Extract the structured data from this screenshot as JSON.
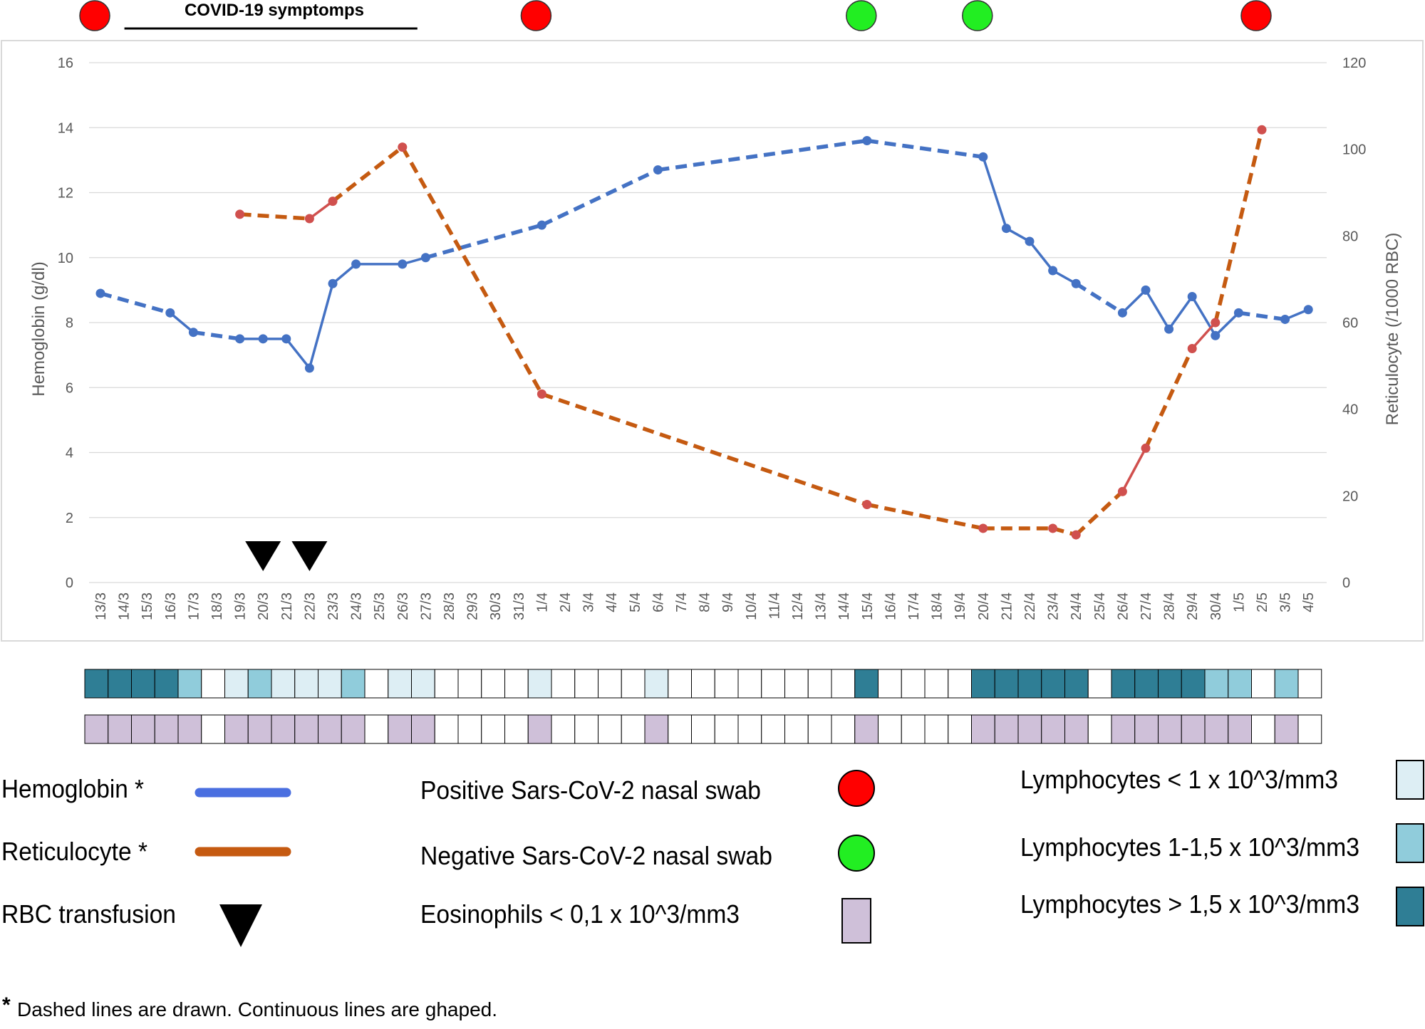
{
  "chart_data": {
    "type": "line",
    "x": [
      "13/3",
      "14/3",
      "15/3",
      "16/3",
      "17/3",
      "18/3",
      "19/3",
      "20/3",
      "21/3",
      "22/3",
      "23/3",
      "24/3",
      "25/3",
      "26/3",
      "27/3",
      "28/3",
      "29/3",
      "30/3",
      "31/3",
      "1/4",
      "2/4",
      "3/4",
      "4/4",
      "5/4",
      "6/4",
      "7/4",
      "8/4",
      "9/4",
      "10/4",
      "11/4",
      "12/4",
      "13/4",
      "14/4",
      "15/4",
      "16/4",
      "17/4",
      "18/4",
      "19/4",
      "20/4",
      "21/4",
      "22/4",
      "23/4",
      "24/4",
      "25/4",
      "26/4",
      "27/4",
      "28/4",
      "29/4",
      "30/4",
      "1/5",
      "2/5",
      "3/5",
      "4/5"
    ],
    "y_left": {
      "label": "Hemoglobin  (g/dl)",
      "min": 0,
      "max": 16,
      "ticks": [
        "0",
        "2",
        "4",
        "6",
        "8",
        "10",
        "12",
        "14",
        "16"
      ]
    },
    "y_right": {
      "label": "Reticulocyte (/1000 RBC)",
      "min": 0,
      "max": 120,
      "ticks": [
        "0",
        "20",
        "40",
        "60",
        "80",
        "100",
        "120"
      ]
    },
    "grid": true,
    "series": [
      {
        "name": "Hemoglobin",
        "axis": "left",
        "color": "#4472c4",
        "points": [
          {
            "x": "13/3",
            "y": 8.9
          },
          {
            "x": "16/3",
            "y": 8.3,
            "seg": "dashed"
          },
          {
            "x": "17/3",
            "y": 7.7,
            "seg": "solid"
          },
          {
            "x": "19/3",
            "y": 7.5,
            "seg": "dashed"
          },
          {
            "x": "20/3",
            "y": 7.5,
            "seg": "solid"
          },
          {
            "x": "21/3",
            "y": 7.5,
            "seg": "solid"
          },
          {
            "x": "22/3",
            "y": 6.6,
            "seg": "solid"
          },
          {
            "x": "23/3",
            "y": 9.2,
            "seg": "solid"
          },
          {
            "x": "24/3",
            "y": 9.8,
            "seg": "solid"
          },
          {
            "x": "26/3",
            "y": 9.8,
            "seg": "solid"
          },
          {
            "x": "27/3",
            "y": 10.0,
            "seg": "solid"
          },
          {
            "x": "1/4",
            "y": 11.0,
            "seg": "dashed"
          },
          {
            "x": "6/4",
            "y": 12.7,
            "seg": "dashed"
          },
          {
            "x": "15/4",
            "y": 13.6,
            "seg": "dashed"
          },
          {
            "x": "20/4",
            "y": 13.1,
            "seg": "dashed"
          },
          {
            "x": "21/4",
            "y": 10.9,
            "seg": "solid"
          },
          {
            "x": "22/4",
            "y": 10.5,
            "seg": "solid"
          },
          {
            "x": "23/4",
            "y": 9.6,
            "seg": "solid"
          },
          {
            "x": "24/4",
            "y": 9.2,
            "seg": "solid"
          },
          {
            "x": "26/4",
            "y": 8.3,
            "seg": "dashed"
          },
          {
            "x": "27/4",
            "y": 9.0,
            "seg": "solid"
          },
          {
            "x": "28/4",
            "y": 7.8,
            "seg": "solid"
          },
          {
            "x": "29/4",
            "y": 8.8,
            "seg": "solid"
          },
          {
            "x": "30/4",
            "y": 7.6,
            "seg": "solid"
          },
          {
            "x": "1/5",
            "y": 8.3,
            "seg": "solid"
          },
          {
            "x": "3/5",
            "y": 8.1,
            "seg": "dashed"
          },
          {
            "x": "4/5",
            "y": 8.4,
            "seg": "solid"
          }
        ]
      },
      {
        "name": "Reticulocyte",
        "axis": "right",
        "color": "#c55a11",
        "solid_color": "#d0504e",
        "points": [
          {
            "x": "19/3",
            "y": 85
          },
          {
            "x": "22/3",
            "y": 84,
            "seg": "dashed"
          },
          {
            "x": "23/3",
            "y": 88,
            "seg": "solid"
          },
          {
            "x": "26/3",
            "y": 100.5,
            "seg": "dashed"
          },
          {
            "x": "1/4",
            "y": 43.5,
            "seg": "dashed"
          },
          {
            "x": "15/4",
            "y": 18,
            "seg": "dashed"
          },
          {
            "x": "20/4",
            "y": 12.5,
            "seg": "dashed"
          },
          {
            "x": "23/4",
            "y": 12.5,
            "seg": "dashed"
          },
          {
            "x": "24/4",
            "y": 11,
            "seg": "dashed"
          },
          {
            "x": "26/4",
            "y": 21,
            "seg": "dashed"
          },
          {
            "x": "27/4",
            "y": 31,
            "seg": "solid"
          },
          {
            "x": "29/4",
            "y": 54,
            "seg": "dashed"
          },
          {
            "x": "30/4",
            "y": 60,
            "seg": "solid"
          },
          {
            "x": "2/5",
            "y": 104.5,
            "seg": "dashed"
          }
        ]
      }
    ],
    "transfusions": [
      "20/3",
      "22/3"
    ],
    "swabs": [
      {
        "x": "13/3",
        "result": "positive"
      },
      {
        "x": "1/4",
        "result": "positive"
      },
      {
        "x": "15/4",
        "result": "negative"
      },
      {
        "x": "20/4",
        "result": "negative"
      },
      {
        "x": "2/5",
        "result": "positive"
      }
    ],
    "covid_symptoms_label": "COVID-19 symptomps",
    "covid_symptoms_range": [
      "14/3",
      "26/3"
    ],
    "lymphocyte_levels": [
      3,
      3,
      3,
      3,
      2,
      0,
      1,
      2,
      1,
      1,
      1,
      2,
      0,
      1,
      1,
      0,
      0,
      0,
      0,
      1,
      0,
      0,
      0,
      0,
      1,
      0,
      0,
      0,
      0,
      0,
      0,
      0,
      0,
      3,
      0,
      0,
      0,
      0,
      3,
      3,
      3,
      3,
      3,
      0,
      3,
      3,
      3,
      3,
      2,
      2,
      0,
      2,
      0
    ],
    "eosinophil_low": [
      1,
      1,
      1,
      1,
      1,
      0,
      1,
      1,
      1,
      1,
      1,
      1,
      0,
      1,
      1,
      0,
      0,
      0,
      0,
      1,
      0,
      0,
      0,
      0,
      1,
      0,
      0,
      0,
      0,
      0,
      0,
      0,
      0,
      1,
      0,
      0,
      0,
      0,
      1,
      1,
      1,
      1,
      1,
      0,
      1,
      1,
      1,
      1,
      1,
      1,
      0,
      1,
      0
    ]
  },
  "colors": {
    "positive_swab": "#ff0000",
    "negative_swab": "#22ee22",
    "lymph_low": "#ddeef4",
    "lymph_mid": "#90ccdb",
    "lymph_high": "#2f7e95",
    "eosinophil": "#cfc0d9",
    "grid": "#d9d9d9"
  },
  "legend": {
    "hemoglobin": "Hemoglobin *",
    "reticulocyte": "Reticulocyte *",
    "transfusion": "RBC transfusion",
    "positive_swab": "Positive Sars-CoV-2 nasal swab",
    "negative_swab": "Negative Sars-CoV-2 nasal swab",
    "eosinophils": "Eosinophils < 0,1 x 10^3/mm3",
    "lymph_low": "Lymphocytes < 1 x 10^3/mm3",
    "lymph_mid": "Lymphocytes 1-1,5 x 10^3/mm3",
    "lymph_high": "Lymphocytes > 1,5 x 10^3/mm3"
  },
  "footnote": {
    "star": "*",
    "text": "Dashed lines are drawn. Continuous lines are ghaped."
  }
}
